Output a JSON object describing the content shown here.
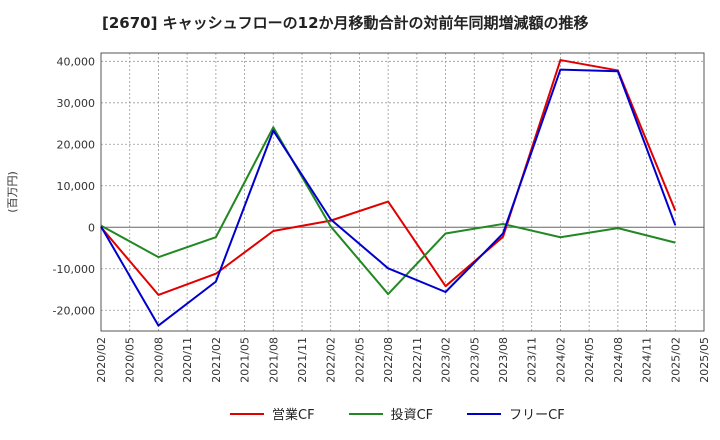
{
  "chart_data": {
    "type": "line",
    "title": "[2670]  キャッシュフローの12か月移動合計の対前年同期増減額の推移",
    "ylabel": "(百万円)",
    "xlabel": "",
    "ylim": [
      -25000,
      42000
    ],
    "yticks": [
      40000,
      30000,
      20000,
      10000,
      0,
      -10000,
      -20000
    ],
    "ytick_labels": [
      "40,000",
      "30,000",
      "20,000",
      "10,000",
      "0",
      "-10,000",
      "-20,000"
    ],
    "x_ticks": [
      "2020/02",
      "2020/05",
      "2020/08",
      "2020/11",
      "2021/02",
      "2021/05",
      "2021/08",
      "2021/11",
      "2022/02",
      "2022/05",
      "2022/08",
      "2022/11",
      "2023/02",
      "2023/05",
      "2023/08",
      "2023/11",
      "2024/02",
      "2024/05",
      "2024/08",
      "2024/11",
      "2025/02",
      "2025/05"
    ],
    "x": [
      "2020/02",
      "2020/08",
      "2021/02",
      "2021/08",
      "2022/02",
      "2022/08",
      "2023/02",
      "2023/08",
      "2024/02",
      "2024/08",
      "2025/02"
    ],
    "grid": true,
    "legend_position": "bottom",
    "series": [
      {
        "name": "営業CF",
        "color": "#e00000",
        "values": [
          0,
          -16300,
          -11200,
          -900,
          1600,
          6200,
          -14200,
          -2300,
          40300,
          37800,
          4000
        ]
      },
      {
        "name": "投資CF",
        "color": "#228822",
        "values": [
          400,
          -7200,
          -2400,
          24100,
          200,
          -16100,
          -1500,
          800,
          -2400,
          -200,
          -3700
        ]
      },
      {
        "name": "フリーCF",
        "color": "#0000cc",
        "values": [
          200,
          -23700,
          -13100,
          23300,
          1900,
          -9900,
          -15600,
          -1500,
          38000,
          37600,
          500
        ]
      }
    ]
  }
}
